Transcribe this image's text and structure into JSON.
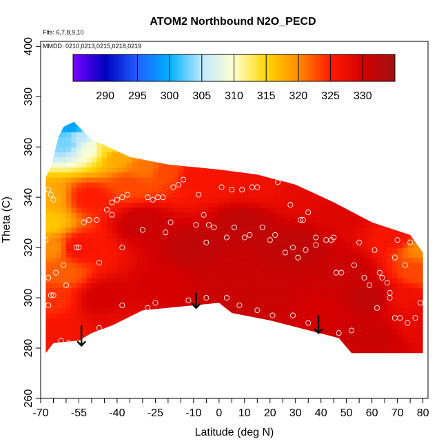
{
  "chart_data": {
    "type": "heatmap",
    "title": "ATOM2 Northbound N2O_PECD",
    "flights_note": "Flts: 6,7,8,9,10",
    "dates_note": "MMDD: 0210,0213,0215,0218,0219",
    "xlabel": "Latitude (deg N)",
    "ylabel": "Theta (C)",
    "xlim": [
      -70,
      82
    ],
    "ylim": [
      260,
      402
    ],
    "x_ticks": [
      -70,
      -55,
      -40,
      -25,
      -10,
      0,
      10,
      20,
      30,
      40,
      50,
      60,
      70,
      80
    ],
    "x_minor_ticks": [
      -65,
      -60,
      -50,
      -45,
      -35,
      -30,
      -20,
      -15,
      -5,
      5,
      15,
      25,
      35,
      45,
      55,
      65,
      75
    ],
    "x_tick_labels": [
      "-70",
      "-55",
      "-40",
      "-25",
      "-10",
      "0",
      "10",
      "20",
      "30",
      "40",
      "50",
      "60",
      "70",
      "80"
    ],
    "y_ticks": [
      260,
      280,
      300,
      320,
      340,
      360,
      380,
      400
    ],
    "y_tick_labels": [
      "260",
      "280",
      "300",
      "320",
      "340",
      "360",
      "380",
      "400"
    ],
    "colorbar": {
      "min": 285,
      "max": 335,
      "ticks": [
        290,
        295,
        300,
        305,
        310,
        315,
        320,
        325,
        330
      ],
      "tick_labels": [
        "290",
        "295",
        "300",
        "305",
        "310",
        "315",
        "320",
        "325",
        "330"
      ],
      "colors": [
        "#7b00ff",
        "#0000c0",
        "#1f5fff",
        "#00b2ff",
        "#bfe8ff",
        "#ffffd0",
        "#ffd700",
        "#ff8c00",
        "#ff1a00",
        "#d40000",
        "#a01010"
      ]
    },
    "field_boundary": {
      "bottom": [
        [
          -68,
          278
        ],
        [
          -65,
          282
        ],
        [
          -55,
          283
        ],
        [
          -50,
          286
        ],
        [
          -42,
          289
        ],
        [
          -30,
          295
        ],
        [
          -10,
          297
        ],
        [
          0,
          298
        ],
        [
          5,
          294
        ],
        [
          20,
          291
        ],
        [
          47,
          284
        ],
        [
          52,
          278
        ],
        [
          80,
          278
        ]
      ],
      "top": [
        [
          80,
          318
        ],
        [
          75,
          325
        ],
        [
          60,
          330
        ],
        [
          45,
          338
        ],
        [
          30,
          345
        ],
        [
          15,
          349
        ],
        [
          0,
          351
        ],
        [
          -20,
          353
        ],
        [
          -35,
          356
        ],
        [
          -50,
          363
        ],
        [
          -57,
          370
        ],
        [
          -61,
          368
        ],
        [
          -63,
          364
        ],
        [
          -64,
          360
        ],
        [
          -65,
          356
        ],
        [
          -66,
          352
        ],
        [
          -68,
          348
        ],
        [
          -68,
          278
        ]
      ]
    },
    "field_anchors": [
      {
        "x": -68,
        "y": 340,
        "v": 318
      },
      {
        "x": -68,
        "y": 330,
        "v": 316
      },
      {
        "x": -66,
        "y": 320,
        "v": 320
      },
      {
        "x": -62,
        "y": 310,
        "v": 322
      },
      {
        "x": -66,
        "y": 300,
        "v": 324
      },
      {
        "x": -62,
        "y": 285,
        "v": 326
      },
      {
        "x": -60,
        "y": 362,
        "v": 303
      },
      {
        "x": -58,
        "y": 368,
        "v": 299
      },
      {
        "x": -55,
        "y": 364,
        "v": 305
      },
      {
        "x": -50,
        "y": 360,
        "v": 309
      },
      {
        "x": -45,
        "y": 360,
        "v": 314
      },
      {
        "x": -40,
        "y": 356,
        "v": 318
      },
      {
        "x": -30,
        "y": 352,
        "v": 321
      },
      {
        "x": -20,
        "y": 350,
        "v": 323
      },
      {
        "x": -10,
        "y": 348,
        "v": 326
      },
      {
        "x": 0,
        "y": 347,
        "v": 326
      },
      {
        "x": 15,
        "y": 345,
        "v": 327
      },
      {
        "x": 30,
        "y": 342,
        "v": 328
      },
      {
        "x": 50,
        "y": 334,
        "v": 329
      },
      {
        "x": 70,
        "y": 325,
        "v": 326
      },
      {
        "x": 80,
        "y": 320,
        "v": 320
      },
      {
        "x": 78,
        "y": 310,
        "v": 323
      },
      {
        "x": 72,
        "y": 300,
        "v": 327
      },
      {
        "x": 78,
        "y": 290,
        "v": 328
      },
      {
        "x": -55,
        "y": 320,
        "v": 326
      },
      {
        "x": -45,
        "y": 300,
        "v": 330
      },
      {
        "x": -50,
        "y": 340,
        "v": 325
      },
      {
        "x": -30,
        "y": 330,
        "v": 331
      },
      {
        "x": -10,
        "y": 320,
        "v": 332
      },
      {
        "x": 10,
        "y": 330,
        "v": 332
      },
      {
        "x": 30,
        "y": 320,
        "v": 332
      },
      {
        "x": 50,
        "y": 310,
        "v": 331
      },
      {
        "x": 60,
        "y": 300,
        "v": 332
      },
      {
        "x": 0,
        "y": 305,
        "v": 331
      },
      {
        "x": 20,
        "y": 300,
        "v": 331
      },
      {
        "x": 40,
        "y": 295,
        "v": 330
      },
      {
        "x": -20,
        "y": 305,
        "v": 330
      },
      {
        "x": -40,
        "y": 290,
        "v": 328
      },
      {
        "x": 60,
        "y": 285,
        "v": 331
      },
      {
        "x": 20,
        "y": 345,
        "v": 327
      },
      {
        "x": -35,
        "y": 345,
        "v": 323
      }
    ],
    "observations": [
      [
        -55,
        320
      ],
      [
        -53,
        330
      ],
      [
        -51,
        331
      ],
      [
        -48,
        331
      ],
      [
        -44,
        335
      ],
      [
        -42,
        338
      ],
      [
        -40,
        339
      ],
      [
        -38,
        340
      ],
      [
        -36,
        341
      ],
      [
        -28,
        340
      ],
      [
        -26,
        339
      ],
      [
        -24,
        340
      ],
      [
        -22,
        340
      ],
      [
        -18,
        344
      ],
      [
        -16,
        345
      ],
      [
        -14,
        347
      ],
      [
        -8,
        341
      ],
      [
        -6,
        333
      ],
      [
        -4,
        329
      ],
      [
        1,
        344
      ],
      [
        5,
        343
      ],
      [
        9,
        343
      ],
      [
        13,
        344
      ],
      [
        15,
        344
      ],
      [
        23,
        346
      ],
      [
        28,
        337
      ],
      [
        32,
        331
      ],
      [
        33,
        331
      ],
      [
        35,
        334
      ],
      [
        38,
        324
      ],
      [
        42,
        323
      ],
      [
        44,
        323
      ],
      [
        45,
        324
      ],
      [
        -67,
        343
      ],
      [
        -66,
        341
      ],
      [
        -65,
        339
      ],
      [
        -68,
        323
      ],
      [
        -67,
        308
      ],
      [
        -66,
        301
      ],
      [
        -64,
        310
      ],
      [
        -61,
        313
      ],
      [
        -60,
        305
      ],
      [
        -56,
        320
      ],
      [
        -47,
        314
      ],
      [
        -42,
        333
      ],
      [
        -38,
        320
      ],
      [
        -30,
        327
      ],
      [
        -28,
        296
      ],
      [
        -21,
        326
      ],
      [
        -19,
        330
      ],
      [
        -9,
        329
      ],
      [
        -5,
        322
      ],
      [
        -2,
        328
      ],
      [
        3,
        324
      ],
      [
        6,
        328
      ],
      [
        10,
        324
      ],
      [
        12,
        325
      ],
      [
        17,
        328
      ],
      [
        20,
        323
      ],
      [
        22,
        325
      ],
      [
        26,
        318
      ],
      [
        29,
        320
      ],
      [
        31,
        316
      ],
      [
        34,
        319
      ],
      [
        38,
        321
      ],
      [
        46,
        310
      ],
      [
        48,
        310
      ],
      [
        53,
        313
      ],
      [
        55,
        322
      ],
      [
        57,
        308
      ],
      [
        59,
        305
      ],
      [
        61,
        319
      ],
      [
        63,
        310
      ],
      [
        64,
        308
      ],
      [
        66,
        306
      ],
      [
        67,
        302
      ],
      [
        69,
        316
      ],
      [
        70,
        323
      ],
      [
        73,
        313
      ],
      [
        75,
        322
      ],
      [
        79,
        298
      ],
      [
        80,
        322
      ],
      [
        -67,
        297
      ],
      [
        -65,
        301
      ],
      [
        -62,
        283
      ],
      [
        -59,
        282
      ],
      [
        -47,
        288
      ],
      [
        -38,
        297
      ],
      [
        -25,
        298
      ],
      [
        -12,
        299
      ],
      [
        -5,
        300
      ],
      [
        3,
        300
      ],
      [
        8,
        297
      ],
      [
        15,
        295
      ],
      [
        21,
        293
      ],
      [
        29,
        293
      ],
      [
        35,
        290
      ],
      [
        47,
        286
      ],
      [
        52,
        287
      ],
      [
        62,
        296
      ],
      [
        67,
        300
      ],
      [
        69,
        292
      ],
      [
        71,
        292
      ],
      [
        74,
        290
      ],
      [
        77,
        292
      ]
    ],
    "arrows": [
      {
        "x": -54,
        "y_top": 289,
        "y_bottom": 281
      },
      {
        "x": -9,
        "y_top": 302,
        "y_bottom": 296
      },
      {
        "x": 39,
        "y_top": 293,
        "y_bottom": 286
      }
    ]
  }
}
